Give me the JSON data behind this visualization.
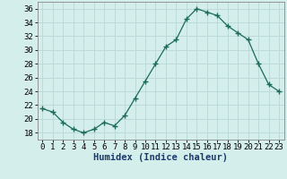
{
  "x": [
    0,
    1,
    2,
    3,
    4,
    5,
    6,
    7,
    8,
    9,
    10,
    11,
    12,
    13,
    14,
    15,
    16,
    17,
    18,
    19,
    20,
    21,
    22,
    23
  ],
  "y": [
    21.5,
    21.0,
    19.5,
    18.5,
    18.0,
    18.5,
    19.5,
    19.0,
    20.5,
    23.0,
    25.5,
    28.0,
    30.5,
    31.5,
    34.5,
    36.0,
    35.5,
    35.0,
    33.5,
    32.5,
    31.5,
    28.0,
    25.0,
    24.0
  ],
  "line_color": "#1a6b5a",
  "marker": "+",
  "marker_size": 4,
  "bg_color": "#d4eeec",
  "grid_color": "#b8d8d5",
  "xlabel": "Humidex (Indice chaleur)",
  "ylim": [
    17,
    37
  ],
  "xlim": [
    -0.5,
    23.5
  ],
  "yticks": [
    18,
    20,
    22,
    24,
    26,
    28,
    30,
    32,
    34,
    36
  ],
  "xticks": [
    0,
    1,
    2,
    3,
    4,
    5,
    6,
    7,
    8,
    9,
    10,
    11,
    12,
    13,
    14,
    15,
    16,
    17,
    18,
    19,
    20,
    21,
    22,
    23
  ],
  "xlabel_fontsize": 7.5,
  "tick_fontsize": 6.5,
  "xlabel_color": "#1a3a6b",
  "spine_color": "#888888"
}
